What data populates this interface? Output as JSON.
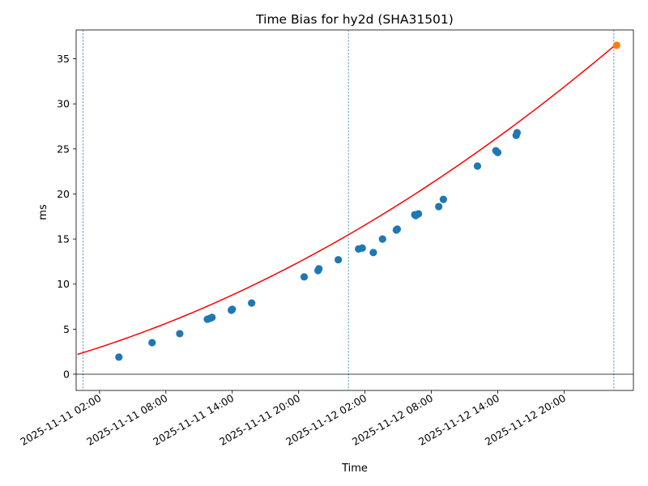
{
  "chart_data": {
    "type": "scatter",
    "title": "Time Bias for hy2d (SHA31501)",
    "xlabel": "Time",
    "ylabel": "ms",
    "x_ticks": [
      {
        "value": "2025-11-11 02:00",
        "label": "2025-11-11 02:00"
      },
      {
        "value": "2025-11-11 08:00",
        "label": "2025-11-11 08:00"
      },
      {
        "value": "2025-11-11 14:00",
        "label": "2025-11-11 14:00"
      },
      {
        "value": "2025-11-11 20:00",
        "label": "2025-11-11 20:00"
      },
      {
        "value": "2025-11-12 02:00",
        "label": "2025-11-12 02:00"
      },
      {
        "value": "2025-11-12 08:00",
        "label": "2025-11-12 08:00"
      },
      {
        "value": "2025-11-12 14:00",
        "label": "2025-11-12 14:00"
      },
      {
        "value": "2025-11-12 20:00",
        "label": "2025-11-12 20:00"
      }
    ],
    "y_ticks": [
      0,
      5,
      10,
      15,
      20,
      25,
      30,
      35
    ],
    "xlim": [
      "2025-11-10 23:53",
      "2025-11-13 02:16"
    ],
    "ylim": [
      -1.8,
      38.2
    ],
    "grid": false,
    "zero_line": 0,
    "vertical_markers": [
      "2025-11-11 00:30",
      "2025-11-12 00:30",
      "2025-11-13 00:30"
    ],
    "colors": {
      "points": "#1f77b4",
      "fit": "#ff0000",
      "prediction": "#ff7f0e",
      "markers": "#1f77b4",
      "zero_line": "#000000"
    },
    "series": [
      {
        "type": "scatter",
        "points": [
          {
            "x": "2025-11-11 03:45",
            "y": 1.9
          },
          {
            "x": "2025-11-11 06:45",
            "y": 3.5
          },
          {
            "x": "2025-11-11 09:15",
            "y": 4.5
          },
          {
            "x": "2025-11-11 11:45",
            "y": 6.1
          },
          {
            "x": "2025-11-11 12:00",
            "y": 6.2
          },
          {
            "x": "2025-11-11 12:10",
            "y": 6.3
          },
          {
            "x": "2025-11-11 13:55",
            "y": 7.1
          },
          {
            "x": "2025-11-11 14:00",
            "y": 7.2
          },
          {
            "x": "2025-11-11 15:45",
            "y": 7.9
          },
          {
            "x": "2025-11-11 20:30",
            "y": 10.8
          },
          {
            "x": "2025-11-11 21:45",
            "y": 11.5
          },
          {
            "x": "2025-11-11 21:50",
            "y": 11.7
          },
          {
            "x": "2025-11-11 23:35",
            "y": 12.7
          },
          {
            "x": "2025-11-12 01:25",
            "y": 13.9
          },
          {
            "x": "2025-11-12 01:45",
            "y": 14.0
          },
          {
            "x": "2025-11-12 02:45",
            "y": 13.5
          },
          {
            "x": "2025-11-12 03:35",
            "y": 15.0
          },
          {
            "x": "2025-11-12 04:50",
            "y": 16.0
          },
          {
            "x": "2025-11-12 04:55",
            "y": 16.1
          },
          {
            "x": "2025-11-12 06:30",
            "y": 17.7
          },
          {
            "x": "2025-11-12 06:35",
            "y": 17.6
          },
          {
            "x": "2025-11-12 06:50",
            "y": 17.8
          },
          {
            "x": "2025-11-12 08:40",
            "y": 18.6
          },
          {
            "x": "2025-11-12 09:05",
            "y": 19.4
          },
          {
            "x": "2025-11-12 12:10",
            "y": 23.1
          },
          {
            "x": "2025-11-12 13:50",
            "y": 24.8
          },
          {
            "x": "2025-11-12 14:00",
            "y": 24.6
          },
          {
            "x": "2025-11-12 15:40",
            "y": 26.5
          },
          {
            "x": "2025-11-12 15:45",
            "y": 26.8
          }
        ]
      },
      {
        "type": "line",
        "fit": {
          "model": "quadratic",
          "points": [
            {
              "x": "2025-11-11 00:00",
              "y": 2.2
            },
            {
              "x": "2025-11-13 00:30",
              "y": 36.4
            }
          ]
        }
      },
      {
        "type": "scatter",
        "points": [
          {
            "x": "2025-11-13 00:45",
            "y": 36.5
          }
        ]
      }
    ]
  }
}
